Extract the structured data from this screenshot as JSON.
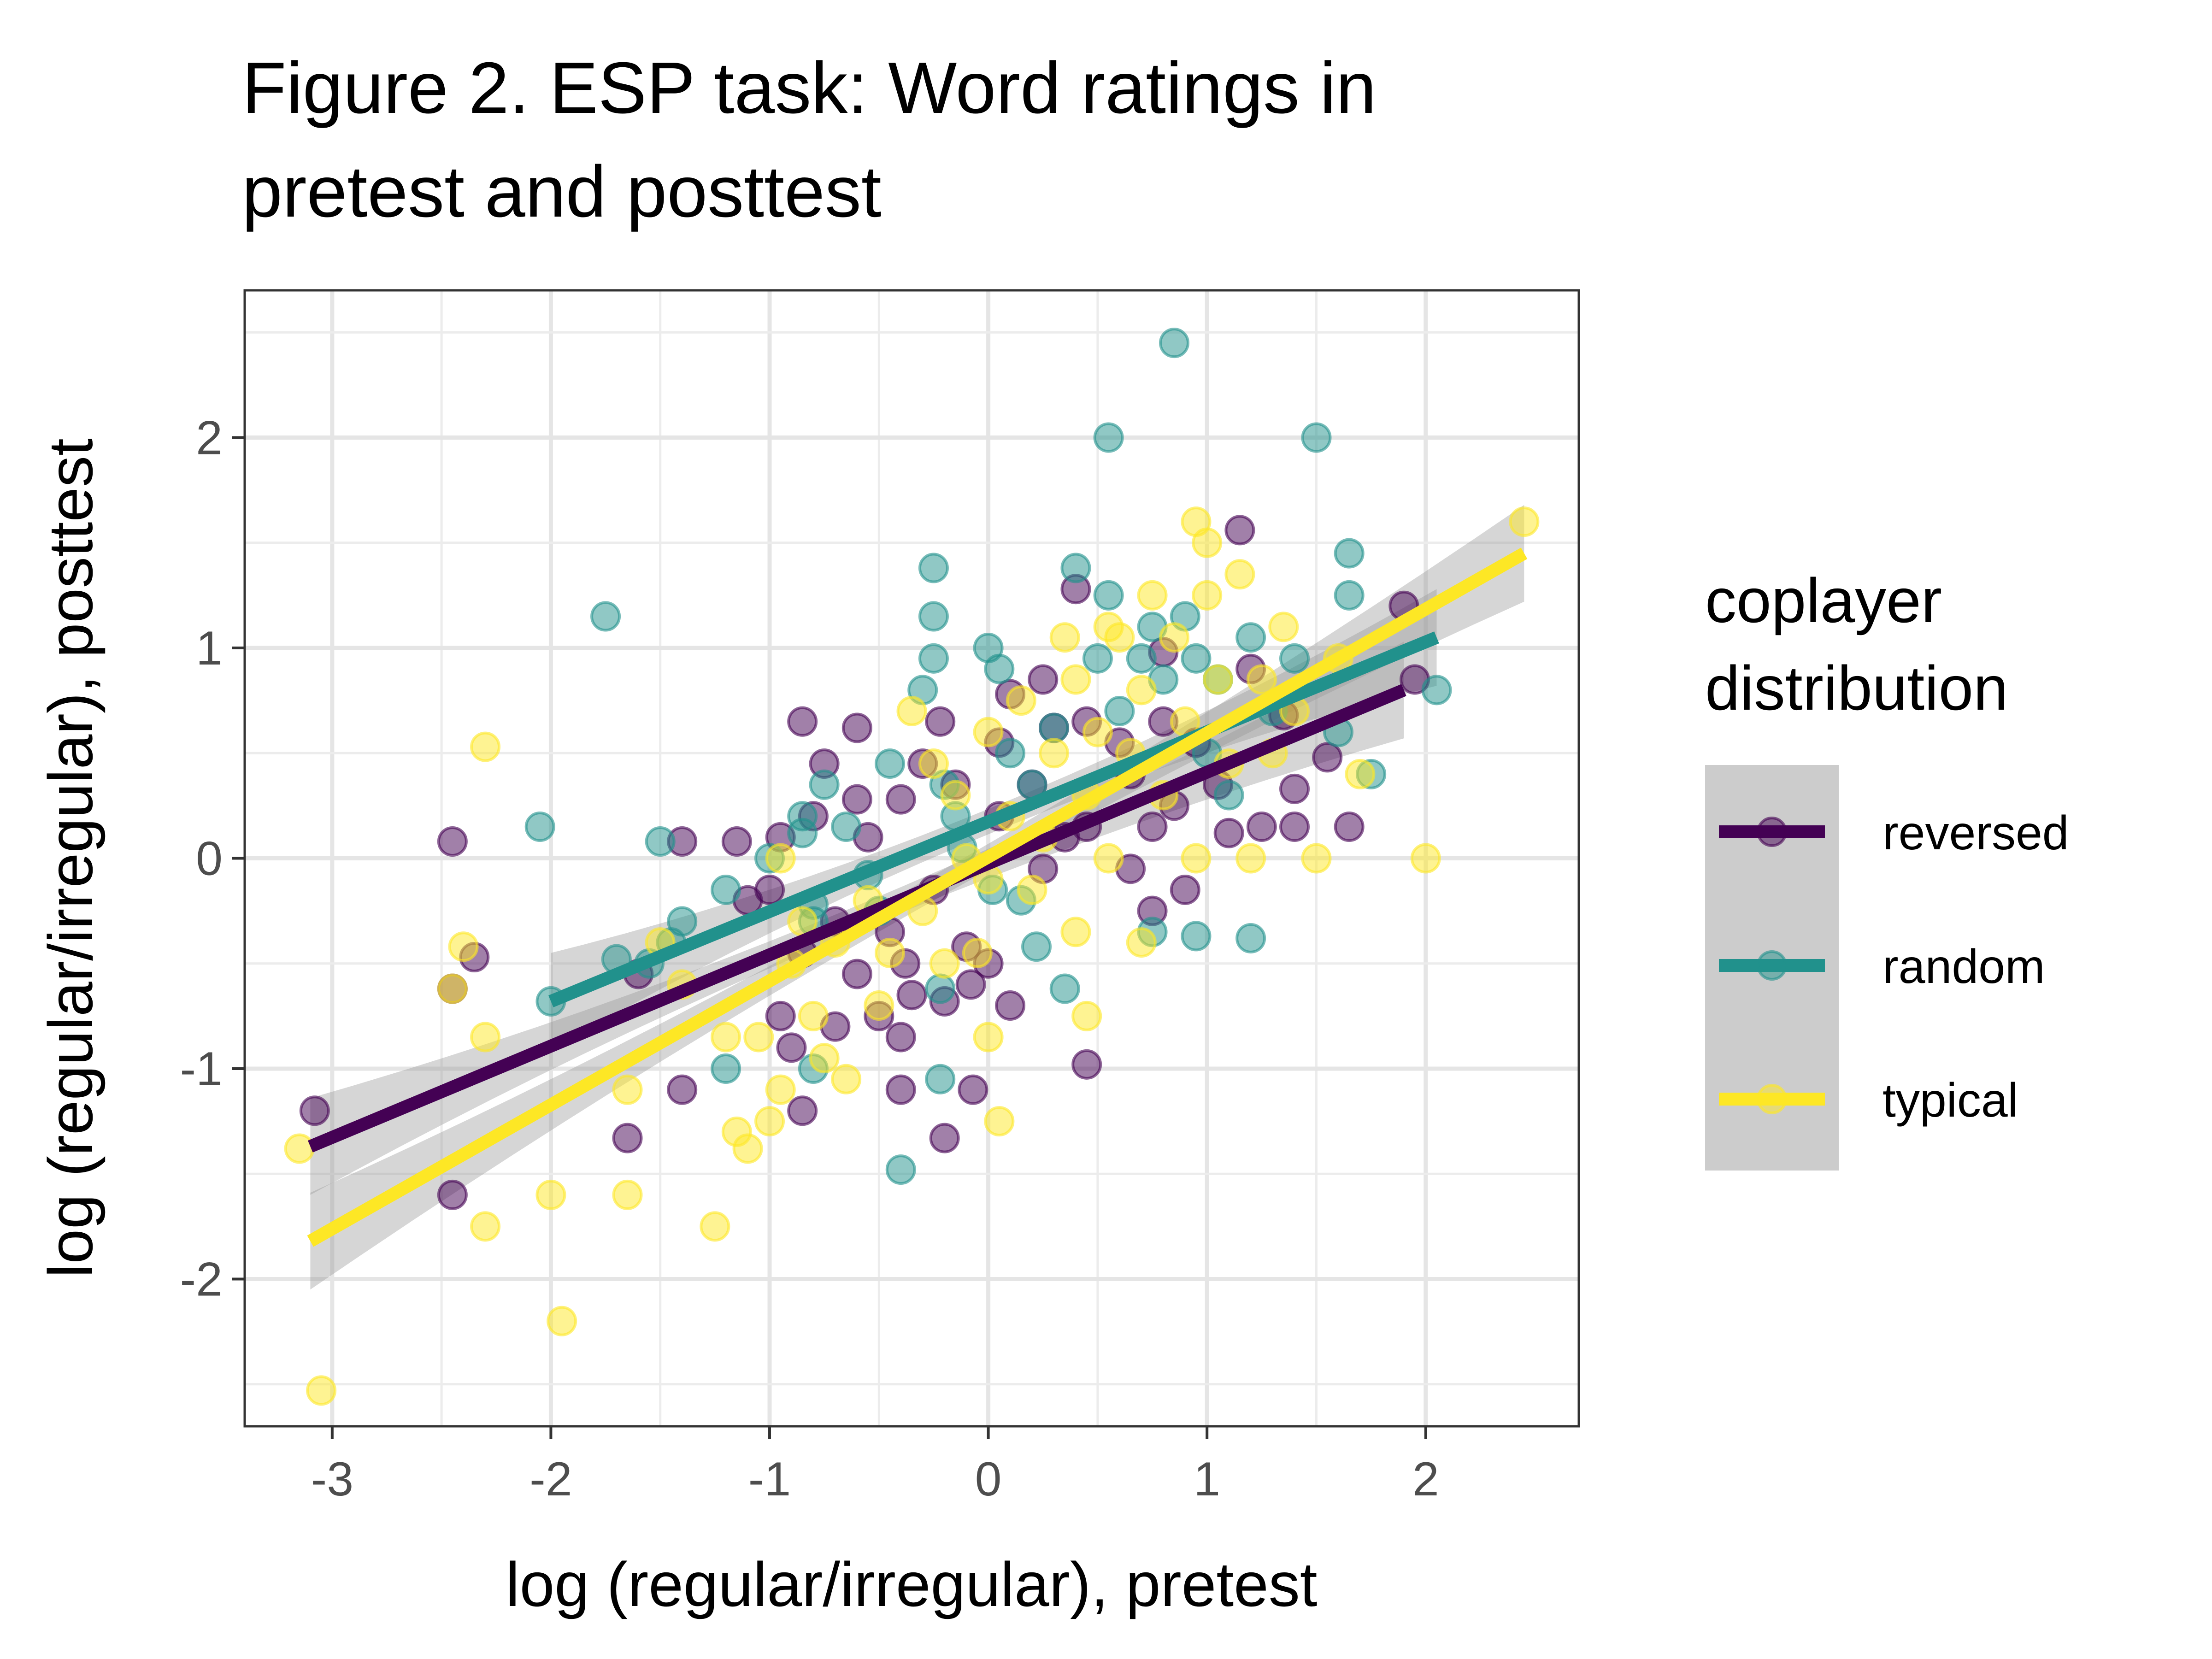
{
  "chart_data": {
    "type": "scatter",
    "title": "Figure 2. ESP task: Word ratings in pretest and posttest",
    "title_lines": [
      "Figure 2. ESP task: Word ratings in",
      "pretest and posttest"
    ],
    "xlabel": "log (regular/irregular), pretest",
    "ylabel": "log (regular/irregular), posttest",
    "xlim": [
      -3.4,
      2.7
    ],
    "ylim": [
      -2.7,
      2.7
    ],
    "x_ticks": [
      -3,
      -2,
      -1,
      0,
      1,
      2
    ],
    "y_ticks": [
      -2,
      -1,
      0,
      1,
      2
    ],
    "x_tick_labels": [
      "-3",
      "-2",
      "-1",
      "0",
      "1",
      "2"
    ],
    "y_tick_labels": [
      "-2",
      "-1",
      "0",
      "1",
      "2"
    ],
    "grid": true,
    "legend": {
      "title_lines": [
        "coplayer",
        "distribution"
      ],
      "position": "right"
    },
    "series": [
      {
        "name": "reversed",
        "color": "#440154",
        "fit": {
          "x": [
            -3.1,
            1.9
          ],
          "y": [
            -1.37,
            0.8
          ]
        },
        "points": [
          [
            -3.08,
            -1.2
          ],
          [
            -2.45,
            0.08
          ],
          [
            -2.45,
            -0.62
          ],
          [
            -2.45,
            -1.6
          ],
          [
            -2.35,
            -0.47
          ],
          [
            -1.65,
            -1.33
          ],
          [
            -1.6,
            -0.55
          ],
          [
            -1.4,
            0.08
          ],
          [
            -1.4,
            -1.1
          ],
          [
            -1.15,
            0.08
          ],
          [
            -1.1,
            -0.2
          ],
          [
            -1.0,
            -0.15
          ],
          [
            -0.95,
            0.1
          ],
          [
            -0.95,
            -0.75
          ],
          [
            -0.9,
            -0.9
          ],
          [
            -0.85,
            0.65
          ],
          [
            -0.85,
            -0.45
          ],
          [
            -0.85,
            -1.2
          ],
          [
            -0.8,
            0.2
          ],
          [
            -0.75,
            0.45
          ],
          [
            -0.7,
            -0.3
          ],
          [
            -0.7,
            -0.8
          ],
          [
            -0.6,
            0.62
          ],
          [
            -0.6,
            0.28
          ],
          [
            -0.6,
            -0.55
          ],
          [
            -0.55,
            0.1
          ],
          [
            -0.5,
            -0.75
          ],
          [
            -0.45,
            -0.35
          ],
          [
            -0.4,
            0.28
          ],
          [
            -0.4,
            -0.85
          ],
          [
            -0.4,
            -1.1
          ],
          [
            -0.38,
            -0.5
          ],
          [
            -0.35,
            -0.65
          ],
          [
            -0.3,
            0.45
          ],
          [
            -0.25,
            -0.15
          ],
          [
            -0.22,
            0.65
          ],
          [
            -0.2,
            -0.68
          ],
          [
            -0.2,
            -1.33
          ],
          [
            -0.15,
            0.35
          ],
          [
            -0.1,
            -0.42
          ],
          [
            -0.08,
            -0.6
          ],
          [
            -0.07,
            -1.1
          ],
          [
            0.0,
            -0.5
          ],
          [
            0.05,
            0.55
          ],
          [
            0.05,
            0.2
          ],
          [
            0.1,
            0.78
          ],
          [
            0.1,
            -0.7
          ],
          [
            0.2,
            0.35
          ],
          [
            0.25,
            0.85
          ],
          [
            0.25,
            -0.05
          ],
          [
            0.3,
            0.62
          ],
          [
            0.35,
            0.1
          ],
          [
            0.4,
            1.28
          ],
          [
            0.45,
            0.65
          ],
          [
            0.45,
            0.15
          ],
          [
            0.45,
            -0.98
          ],
          [
            0.6,
            0.55
          ],
          [
            0.65,
            0.4
          ],
          [
            0.65,
            -0.05
          ],
          [
            0.75,
            0.15
          ],
          [
            0.75,
            -0.25
          ],
          [
            0.8,
            0.98
          ],
          [
            0.8,
            0.65
          ],
          [
            0.85,
            0.25
          ],
          [
            0.9,
            -0.15
          ],
          [
            0.95,
            0.55
          ],
          [
            1.05,
            0.35
          ],
          [
            1.1,
            0.12
          ],
          [
            1.15,
            1.56
          ],
          [
            1.2,
            0.9
          ],
          [
            1.25,
            0.15
          ],
          [
            1.35,
            0.68
          ],
          [
            1.4,
            0.15
          ],
          [
            1.4,
            0.33
          ],
          [
            1.55,
            0.48
          ],
          [
            1.65,
            0.15
          ],
          [
            1.9,
            1.2
          ],
          [
            1.95,
            0.85
          ]
        ]
      },
      {
        "name": "random",
        "color": "#21918c",
        "fit": {
          "x": [
            -2.0,
            2.05
          ],
          "y": [
            -0.68,
            1.05
          ]
        },
        "points": [
          [
            -2.05,
            0.15
          ],
          [
            -2.0,
            -0.68
          ],
          [
            -1.75,
            1.15
          ],
          [
            -1.7,
            -0.48
          ],
          [
            -1.55,
            -0.5
          ],
          [
            -1.5,
            0.08
          ],
          [
            -1.45,
            -0.4
          ],
          [
            -1.4,
            -0.3
          ],
          [
            -1.2,
            -0.15
          ],
          [
            -1.2,
            -1.0
          ],
          [
            -1.0,
            0.0
          ],
          [
            -0.85,
            0.2
          ],
          [
            -0.85,
            0.12
          ],
          [
            -0.8,
            -0.22
          ],
          [
            -0.8,
            -0.3
          ],
          [
            -0.8,
            -1.0
          ],
          [
            -0.75,
            0.35
          ],
          [
            -0.65,
            0.15
          ],
          [
            -0.55,
            -0.08
          ],
          [
            -0.5,
            -0.25
          ],
          [
            -0.45,
            0.45
          ],
          [
            -0.4,
            -1.48
          ],
          [
            -0.3,
            0.8
          ],
          [
            -0.25,
            1.38
          ],
          [
            -0.25,
            1.15
          ],
          [
            -0.25,
            0.95
          ],
          [
            -0.22,
            -1.05
          ],
          [
            -0.22,
            -0.62
          ],
          [
            -0.2,
            0.35
          ],
          [
            -0.15,
            0.2
          ],
          [
            -0.12,
            0.05
          ],
          [
            0.0,
            1.0
          ],
          [
            0.02,
            -0.15
          ],
          [
            0.05,
            0.9
          ],
          [
            0.1,
            0.5
          ],
          [
            0.15,
            -0.2
          ],
          [
            0.2,
            0.35
          ],
          [
            0.22,
            -0.42
          ],
          [
            0.3,
            0.62
          ],
          [
            0.35,
            -0.62
          ],
          [
            0.4,
            1.38
          ],
          [
            0.5,
            0.95
          ],
          [
            0.55,
            1.25
          ],
          [
            0.55,
            2.0
          ],
          [
            0.6,
            0.7
          ],
          [
            0.7,
            0.95
          ],
          [
            0.75,
            1.1
          ],
          [
            0.75,
            -0.35
          ],
          [
            0.8,
            0.85
          ],
          [
            0.85,
            2.45
          ],
          [
            0.9,
            1.15
          ],
          [
            0.95,
            0.95
          ],
          [
            0.95,
            -0.37
          ],
          [
            1.0,
            0.5
          ],
          [
            1.05,
            0.85
          ],
          [
            1.1,
            0.3
          ],
          [
            1.2,
            1.05
          ],
          [
            1.2,
            -0.38
          ],
          [
            1.3,
            0.7
          ],
          [
            1.4,
            0.95
          ],
          [
            1.5,
            2.0
          ],
          [
            1.6,
            0.6
          ],
          [
            1.65,
            1.45
          ],
          [
            1.65,
            1.25
          ],
          [
            1.75,
            0.4
          ],
          [
            2.05,
            0.8
          ]
        ]
      },
      {
        "name": "typical",
        "color": "#fde725",
        "fit": {
          "x": [
            -3.1,
            2.45
          ],
          "y": [
            -1.82,
            1.45
          ]
        },
        "points": [
          [
            -3.15,
            -1.38
          ],
          [
            -3.05,
            -2.53
          ],
          [
            -2.45,
            -0.62
          ],
          [
            -2.4,
            -0.42
          ],
          [
            -2.3,
            0.53
          ],
          [
            -2.3,
            -0.85
          ],
          [
            -2.3,
            -1.75
          ],
          [
            -2.0,
            -1.6
          ],
          [
            -1.95,
            -2.2
          ],
          [
            -1.65,
            -1.1
          ],
          [
            -1.65,
            -1.6
          ],
          [
            -1.5,
            -0.4
          ],
          [
            -1.4,
            -0.6
          ],
          [
            -1.25,
            -1.75
          ],
          [
            -1.2,
            -0.85
          ],
          [
            -1.15,
            -1.3
          ],
          [
            -1.1,
            -1.38
          ],
          [
            -1.05,
            -0.85
          ],
          [
            -1.0,
            -1.25
          ],
          [
            -0.95,
            0.0
          ],
          [
            -0.95,
            -1.1
          ],
          [
            -0.9,
            -0.5
          ],
          [
            -0.85,
            -0.3
          ],
          [
            -0.8,
            -0.75
          ],
          [
            -0.75,
            -0.95
          ],
          [
            -0.7,
            -0.4
          ],
          [
            -0.65,
            -1.05
          ],
          [
            -0.55,
            -0.2
          ],
          [
            -0.5,
            -0.7
          ],
          [
            -0.45,
            -0.45
          ],
          [
            -0.35,
            0.7
          ],
          [
            -0.3,
            -0.25
          ],
          [
            -0.25,
            0.45
          ],
          [
            -0.2,
            -0.5
          ],
          [
            -0.15,
            0.3
          ],
          [
            -0.1,
            0.0
          ],
          [
            -0.05,
            -0.45
          ],
          [
            0.0,
            0.6
          ],
          [
            0.0,
            -0.1
          ],
          [
            0.0,
            -0.85
          ],
          [
            0.05,
            -1.25
          ],
          [
            0.1,
            0.2
          ],
          [
            0.15,
            0.75
          ],
          [
            0.2,
            -0.15
          ],
          [
            0.25,
            0.1
          ],
          [
            0.3,
            0.5
          ],
          [
            0.35,
            1.05
          ],
          [
            0.4,
            0.85
          ],
          [
            0.4,
            -0.35
          ],
          [
            0.45,
            0.3
          ],
          [
            0.45,
            -0.75
          ],
          [
            0.5,
            0.6
          ],
          [
            0.55,
            1.1
          ],
          [
            0.55,
            0.0
          ],
          [
            0.6,
            1.05
          ],
          [
            0.65,
            0.5
          ],
          [
            0.7,
            0.8
          ],
          [
            0.7,
            -0.4
          ],
          [
            0.75,
            1.25
          ],
          [
            0.8,
            0.3
          ],
          [
            0.85,
            1.05
          ],
          [
            0.9,
            0.65
          ],
          [
            0.95,
            1.6
          ],
          [
            0.95,
            0.0
          ],
          [
            1.0,
            1.5
          ],
          [
            1.0,
            1.25
          ],
          [
            1.05,
            0.85
          ],
          [
            1.1,
            0.45
          ],
          [
            1.15,
            1.35
          ],
          [
            1.2,
            0.0
          ],
          [
            1.25,
            0.85
          ],
          [
            1.3,
            0.5
          ],
          [
            1.35,
            1.1
          ],
          [
            1.4,
            0.7
          ],
          [
            1.5,
            0.0
          ],
          [
            1.6,
            0.95
          ],
          [
            1.7,
            0.4
          ],
          [
            2.0,
            0.0
          ],
          [
            2.45,
            1.6
          ]
        ]
      }
    ]
  }
}
